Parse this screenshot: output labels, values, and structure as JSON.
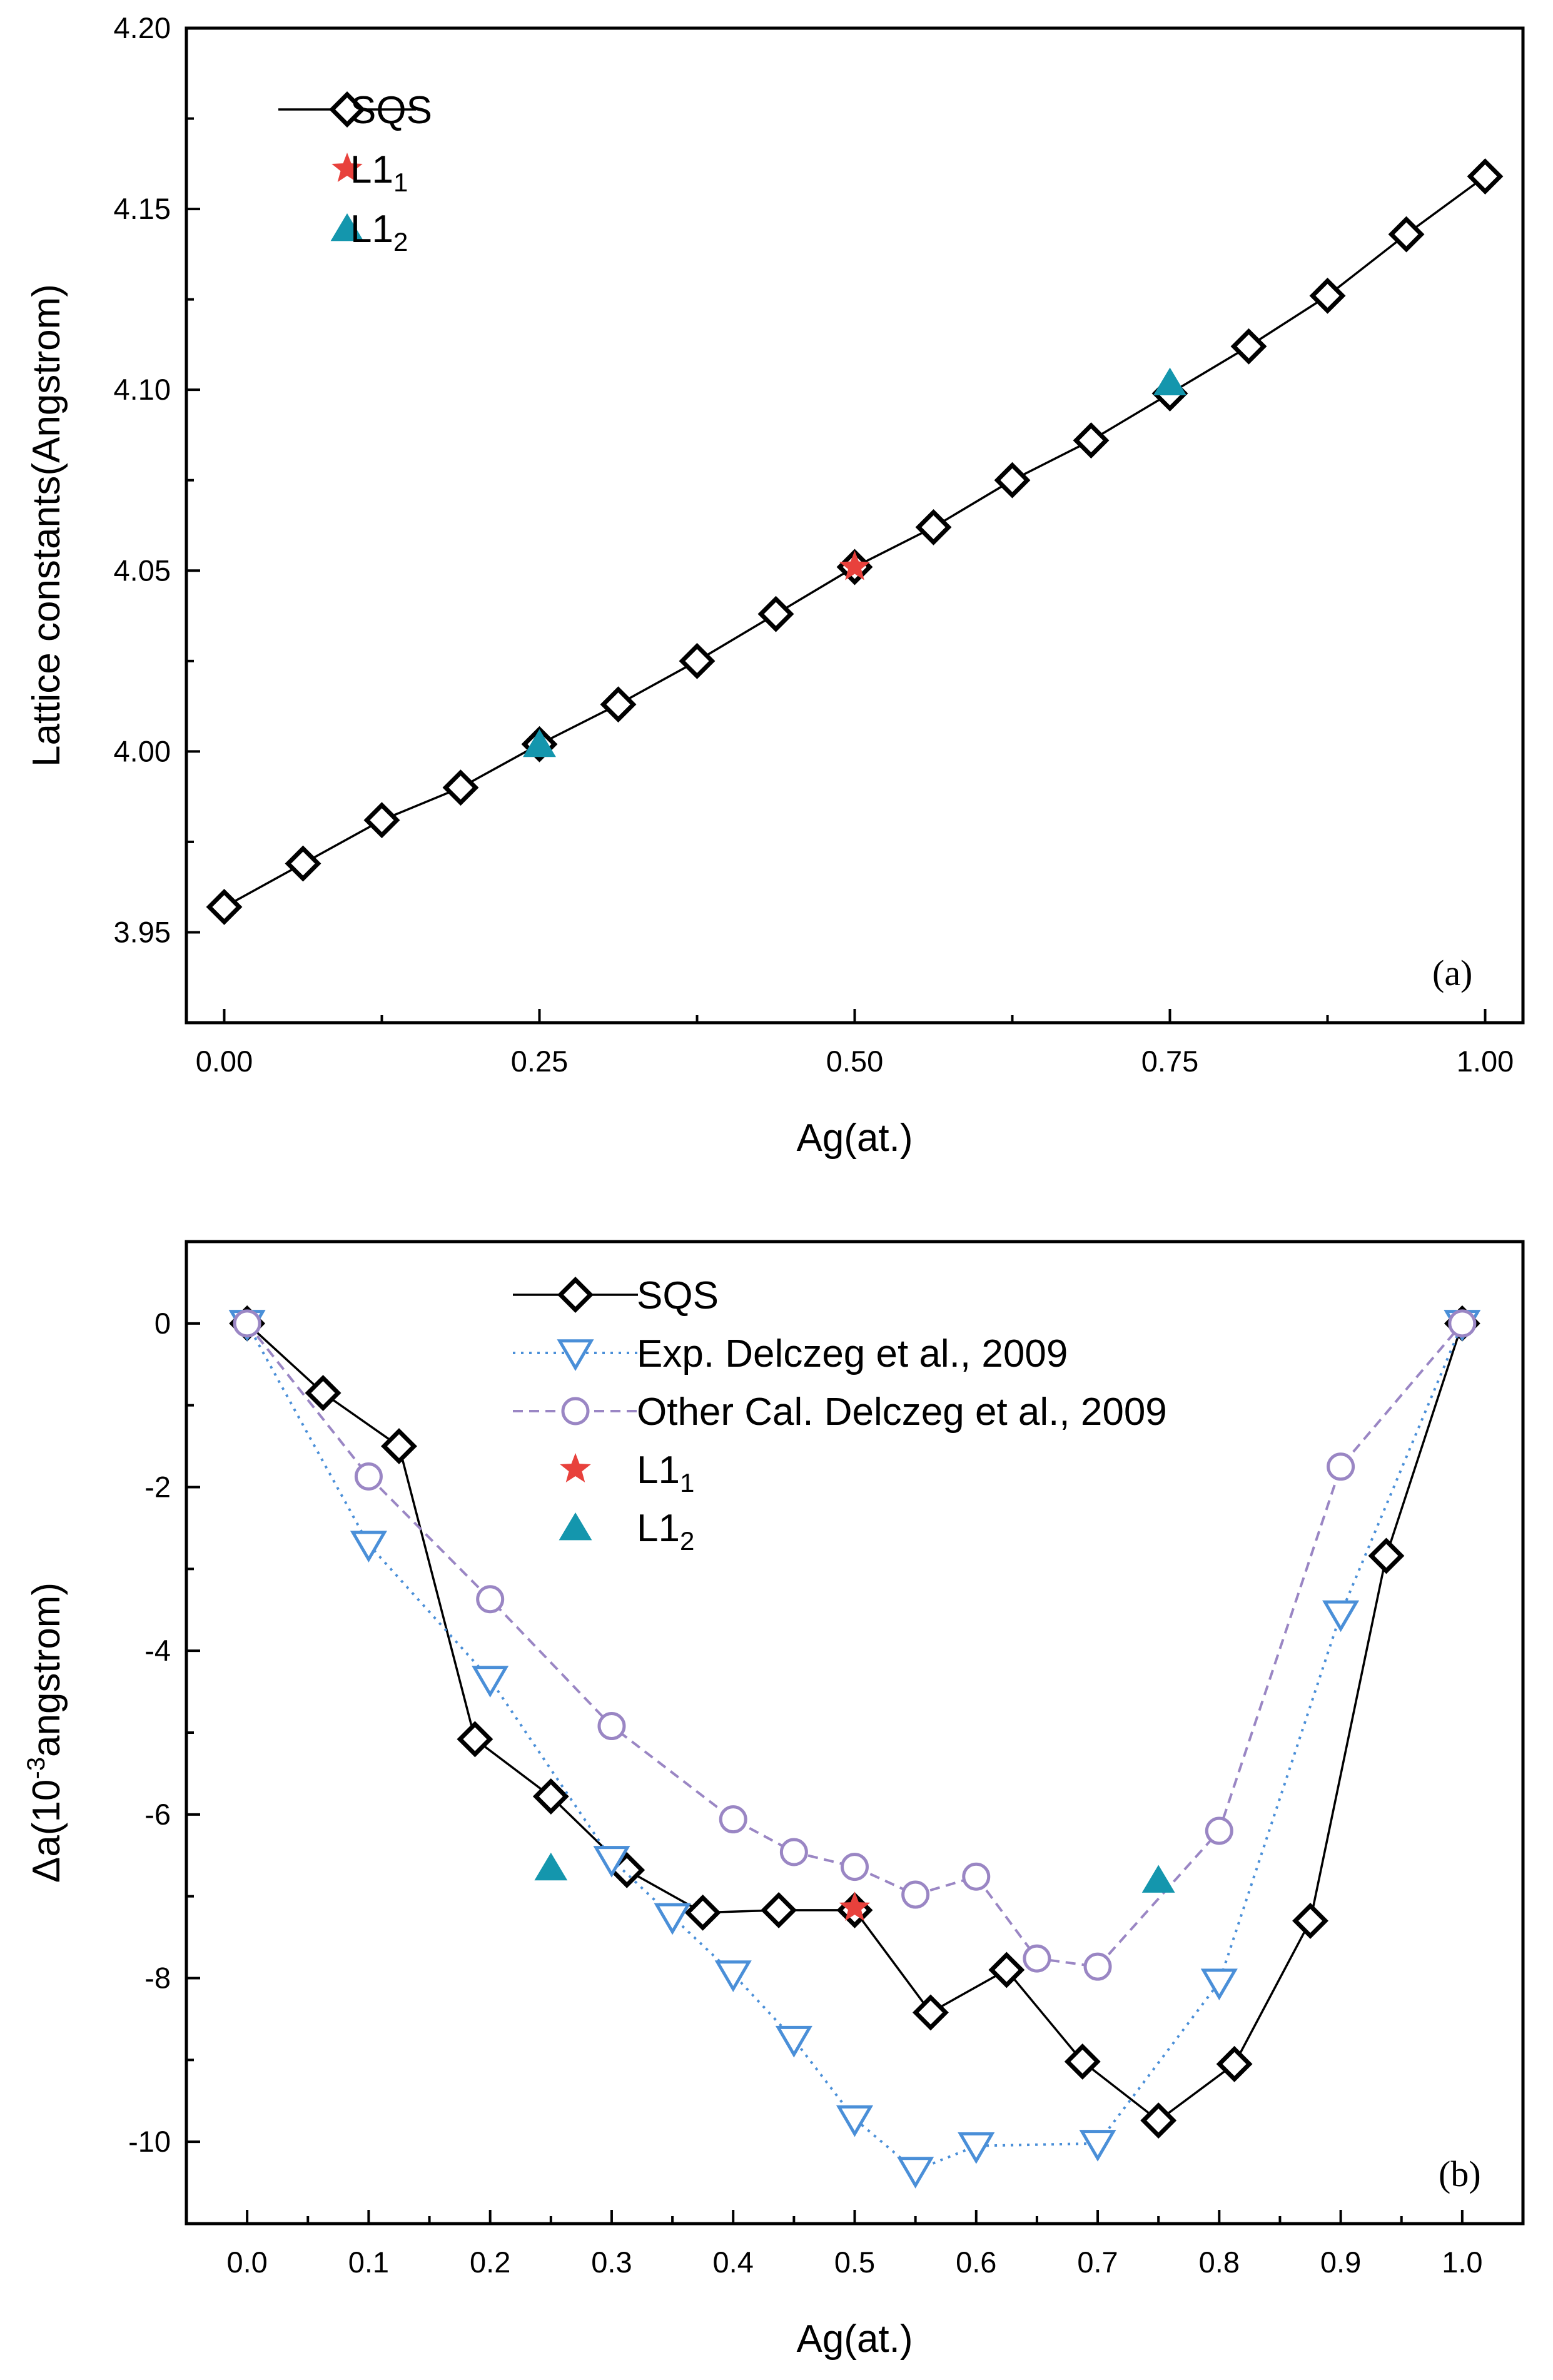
{
  "chart_data": [
    {
      "type": "line",
      "panel_label": "(a)",
      "xlabel": "Ag(at.)",
      "ylabel": "Lattice constants(Angstrom)",
      "xlim": [
        -0.03,
        1.03
      ],
      "ylim": [
        3.925,
        4.2
      ],
      "xticks": [
        "0.00",
        "0.25",
        "0.50",
        "0.75",
        "1.00"
      ],
      "yticks": [
        "3.95",
        "4.00",
        "4.05",
        "4.10",
        "4.15",
        "4.20"
      ],
      "legend": {
        "position": "top-left",
        "entries": [
          "SQS",
          "L1",
          "L1"
        ],
        "subscripts": [
          "",
          "1",
          "2"
        ]
      },
      "series": [
        {
          "name": "SQS",
          "marker": "diamond",
          "color": "#000000",
          "line": "solid",
          "x": [
            0,
            0.0625,
            0.125,
            0.1875,
            0.25,
            0.3125,
            0.375,
            0.4375,
            0.5,
            0.5625,
            0.625,
            0.6875,
            0.75,
            0.8125,
            0.875,
            0.9375,
            1.0
          ],
          "y": [
            3.957,
            3.969,
            3.981,
            3.99,
            4.002,
            4.013,
            4.025,
            4.038,
            4.051,
            4.062,
            4.075,
            4.086,
            4.099,
            4.112,
            4.126,
            4.143,
            4.159
          ]
        },
        {
          "name": "L1_1",
          "marker": "star",
          "color": "#e8413c",
          "line": "none",
          "x": [
            0.5
          ],
          "y": [
            4.051
          ]
        },
        {
          "name": "L1_2",
          "marker": "triangle-up",
          "color": "#1496ad",
          "line": "none",
          "x": [
            0.25,
            0.75
          ],
          "y": [
            4.002,
            4.102
          ]
        }
      ]
    },
    {
      "type": "line",
      "panel_label": "(b)",
      "xlabel": "Ag(at.)",
      "ylabel": "Δa(10-3angstrom)",
      "ylabel_parts": [
        "Δa(10",
        "-3",
        "angstrom)"
      ],
      "xlim": [
        -0.05,
        1.05
      ],
      "ylim": [
        -11.0,
        1.0
      ],
      "xticks": [
        "0.0",
        "0.1",
        "0.2",
        "0.3",
        "0.4",
        "0.5",
        "0.6",
        "0.7",
        "0.8",
        "0.9",
        "1.0"
      ],
      "yticks": [
        "-10",
        "-8",
        "-6",
        "-4",
        "-2",
        "0"
      ],
      "legend": {
        "position": "top-center",
        "entries": [
          "SQS",
          "Exp. Delczeg et al., 2009",
          "Other Cal. Delczeg et al., 2009",
          "L1",
          "L1"
        ],
        "subscripts": [
          "",
          "",
          "",
          "1",
          "2"
        ]
      },
      "series": [
        {
          "name": "SQS",
          "marker": "diamond",
          "color": "#000000",
          "line": "solid",
          "x": [
            0,
            0.0625,
            0.125,
            0.1875,
            0.25,
            0.3125,
            0.375,
            0.4375,
            0.5,
            0.5625,
            0.625,
            0.6875,
            0.75,
            0.8125,
            0.875,
            0.9375,
            1.0
          ],
          "y": [
            0,
            -0.85,
            -1.5,
            -5.08,
            -5.78,
            -6.68,
            -7.2,
            -7.17,
            -7.17,
            -8.42,
            -7.9,
            -9.02,
            -9.74,
            -9.05,
            -7.3,
            -2.84,
            0
          ]
        },
        {
          "name": "Exp. Delczeg et al., 2009",
          "marker": "triangle-down",
          "color": "#4a8fd8",
          "line": "dotted",
          "x": [
            0,
            0.1,
            0.2,
            0.3,
            0.35,
            0.4,
            0.45,
            0.5,
            0.55,
            0.6,
            0.7,
            0.8,
            0.9,
            1.0
          ],
          "y": [
            0,
            -2.7,
            -4.35,
            -6.55,
            -7.25,
            -7.95,
            -8.75,
            -9.72,
            -10.35,
            -10.05,
            -10.02,
            -8.05,
            -3.55,
            0
          ]
        },
        {
          "name": "Other Cal. Delczeg et al., 2009",
          "marker": "circle",
          "color": "#9a86c4",
          "line": "dashed",
          "x": [
            0,
            0.1,
            0.2,
            0.3,
            0.4,
            0.45,
            0.5,
            0.55,
            0.6,
            0.65,
            0.7,
            0.8,
            0.9,
            1.0
          ],
          "y": [
            0,
            -1.87,
            -3.37,
            -4.92,
            -6.06,
            -6.46,
            -6.64,
            -6.98,
            -6.76,
            -7.76,
            -7.86,
            -6.2,
            -1.75,
            0
          ]
        },
        {
          "name": "L1_1",
          "marker": "star",
          "color": "#e8413c",
          "line": "none",
          "x": [
            0.5
          ],
          "y": [
            -7.14
          ]
        },
        {
          "name": "L1_2",
          "marker": "triangle-up",
          "color": "#1496ad",
          "line": "none",
          "x": [
            0.25,
            0.75
          ],
          "y": [
            -6.65,
            -6.8
          ]
        }
      ]
    }
  ]
}
